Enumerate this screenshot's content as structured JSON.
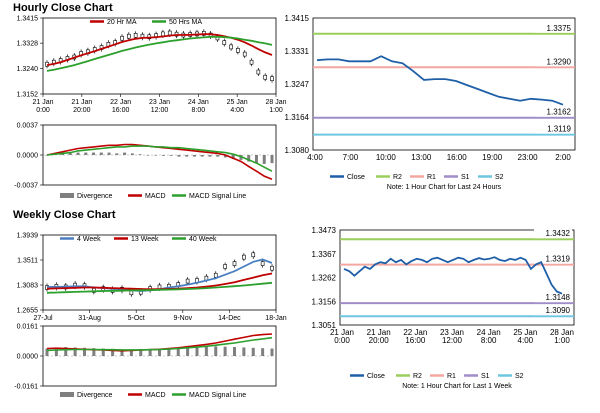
{
  "page": {
    "hourly_title": "Hourly Close Chart",
    "weekly_title": "Weekly Close Chart"
  },
  "colors": {
    "candle_up": "#ffffff",
    "candle_line": "#000000",
    "ma_short": "#c00000",
    "ma_long": "#2ca02c",
    "ma_4week": "#4a7fc1",
    "close": "#1f5fa8",
    "r2": "#9acd5a",
    "r1": "#f4a6a0",
    "s1": "#a08cc8",
    "s2": "#6ec6e0",
    "divergence": "#7f7f7f",
    "grid": "#dddddd",
    "macd_fill": "#e0e0e0"
  },
  "chart_data": [
    {
      "id": "hourly-price",
      "type": "line",
      "title": "Hourly Close Chart",
      "x_ticks": [
        "21 Jan 0:00",
        "21 Jan 20:00",
        "22 Jan 16:00",
        "23 Jan 12:00",
        "24 Jan 8:00",
        "25 Jan 4:00",
        "28 Jan 1:00"
      ],
      "y_ticks": [
        "1.3415",
        "1.3328",
        "1.3240",
        "1.3152"
      ],
      "ylim": [
        1.3152,
        1.3415
      ],
      "legend": [
        "20 Hr MA",
        "50 Hrs MA"
      ],
      "series": [
        {
          "name": "Close",
          "values": [
            1.3255,
            1.3262,
            1.3268,
            1.3275,
            1.328,
            1.3292,
            1.3298,
            1.3306,
            1.3313,
            1.3324,
            1.333,
            1.3345,
            1.3352,
            1.3355,
            1.3352,
            1.335,
            1.3354,
            1.336,
            1.3363,
            1.3359,
            1.3356,
            1.3358,
            1.336,
            1.3362,
            1.3356,
            1.3346,
            1.333,
            1.3315,
            1.3303,
            1.329,
            1.3262,
            1.3228,
            1.321,
            1.3205
          ]
        },
        {
          "name": "20 Hr MA",
          "values": [
            1.3252,
            1.3256,
            1.3262,
            1.327,
            1.3278,
            1.3286,
            1.3293,
            1.33,
            1.3308,
            1.3316,
            1.3324,
            1.3332,
            1.3338,
            1.3343,
            1.3346,
            1.3347,
            1.3349,
            1.3351,
            1.3354,
            1.3356,
            1.3356,
            1.3357,
            1.3358,
            1.3359,
            1.3359,
            1.3356,
            1.3352,
            1.3347,
            1.334,
            1.3331,
            1.332,
            1.3307,
            1.3296,
            1.3287
          ]
        },
        {
          "name": "50 Hrs MA",
          "values": [
            1.3232,
            1.3236,
            1.3241,
            1.3246,
            1.3252,
            1.3259,
            1.3266,
            1.3273,
            1.328,
            1.3287,
            1.3294,
            1.3301,
            1.3307,
            1.3313,
            1.3318,
            1.3323,
            1.3327,
            1.3331,
            1.3335,
            1.3338,
            1.3341,
            1.3344,
            1.3346,
            1.3348,
            1.335,
            1.335,
            1.3349,
            1.3347,
            1.3344,
            1.334,
            1.3336,
            1.3331,
            1.3327,
            1.3322
          ]
        }
      ]
    },
    {
      "id": "hourly-macd",
      "type": "line",
      "y_ticks": [
        "0.0037",
        "0.0000",
        "-0.0037"
      ],
      "ylim": [
        -0.0037,
        0.0037
      ],
      "legend": [
        "Divergence",
        "MACD",
        "MACD Signal Line"
      ],
      "series": [
        {
          "name": "MACD",
          "values": [
            0.0,
            0.0002,
            0.0004,
            0.0006,
            0.0008,
            0.0009,
            0.001,
            0.0011,
            0.0012,
            0.0012,
            0.0013,
            0.0013,
            0.0012,
            0.0011,
            0.001,
            0.0009,
            0.0008,
            0.0007,
            0.0006,
            0.0005,
            0.0004,
            0.0003,
            0.0002,
            0.0,
            -0.0004,
            -0.0008,
            -0.0014,
            -0.002,
            -0.0026,
            -0.003
          ]
        },
        {
          "name": "MACD Signal Line",
          "values": [
            0.0,
            0.0001,
            0.0002,
            0.0003,
            0.0005,
            0.0006,
            0.0007,
            0.0008,
            0.0009,
            0.001,
            0.001,
            0.0011,
            0.0011,
            0.0011,
            0.001,
            0.001,
            0.0009,
            0.0009,
            0.0008,
            0.0007,
            0.0006,
            0.0005,
            0.0004,
            0.0003,
            0.0001,
            -0.0002,
            -0.0006,
            -0.001,
            -0.0015,
            -0.002
          ]
        },
        {
          "name": "Divergence",
          "values": [
            0.0,
            0.0001,
            0.0002,
            0.0003,
            0.0003,
            0.0003,
            0.0003,
            0.0003,
            0.0003,
            0.0002,
            0.0003,
            0.0002,
            0.0001,
            0.0,
            0.0,
            -0.0001,
            -0.0001,
            -0.0002,
            -0.0002,
            -0.0002,
            -0.0002,
            -0.0002,
            -0.0002,
            -0.0003,
            -0.0005,
            -0.0006,
            -0.0008,
            -0.001,
            -0.0011,
            -0.001
          ]
        }
      ]
    },
    {
      "id": "hourly-close-pivots",
      "type": "line",
      "x_ticks": [
        "4:00",
        "7:00",
        "10:00",
        "13:00",
        "16:00",
        "19:00",
        "23:00",
        "2:00"
      ],
      "y_ticks": [
        "1.3415",
        "1.3331",
        "1.3247",
        "1.3164",
        "1.3080"
      ],
      "ylim": [
        1.308,
        1.3415
      ],
      "pivots": [
        {
          "name": "R2",
          "value": 1.3375,
          "label": "1.3375"
        },
        {
          "name": "R1",
          "value": 1.329,
          "label": "1.3290"
        },
        {
          "name": "S1",
          "value": 1.3162,
          "label": "1.3162"
        },
        {
          "name": "S2",
          "value": 1.3119,
          "label": "1.3119"
        }
      ],
      "close_x": [
        0,
        1,
        2,
        3,
        4,
        5,
        6,
        7,
        8,
        9,
        10,
        11,
        12,
        13,
        14,
        15,
        16,
        17,
        18,
        19,
        20,
        21,
        22,
        23
      ],
      "close_values": [
        1.3308,
        1.331,
        1.331,
        1.3305,
        1.3305,
        1.3305,
        1.3318,
        1.3305,
        1.33,
        1.328,
        1.3258,
        1.326,
        1.326,
        1.3255,
        1.3245,
        1.3235,
        1.3225,
        1.3215,
        1.321,
        1.3205,
        1.321,
        1.3208,
        1.3205,
        1.3195
      ],
      "legend": [
        "Close",
        "R2",
        "R1",
        "S1",
        "S2"
      ],
      "note": "Note: 1 Hour Chart for Last 24 Hours"
    },
    {
      "id": "weekly-price",
      "type": "line",
      "title": "Weekly Close Chart",
      "x_ticks": [
        "27-Jul",
        "31-Aug",
        "5-Oct",
        "9-Nov",
        "14-Dec",
        "18-Jan"
      ],
      "y_ticks": [
        "1.3939",
        "1.3511",
        "1.3083",
        "1.2655"
      ],
      "ylim": [
        1.2655,
        1.3939
      ],
      "legend": [
        "4 Week",
        "13 Week",
        "40 Week"
      ],
      "series": [
        {
          "name": "Close",
          "values": [
            1.304,
            1.306,
            1.305,
            1.308,
            1.307,
            1.299,
            1.302,
            1.299,
            1.301,
            1.295,
            1.296,
            1.302,
            1.305,
            1.306,
            1.309,
            1.315,
            1.316,
            1.32,
            1.325,
            1.34,
            1.345,
            1.356,
            1.36,
            1.345,
            1.337
          ]
        },
        {
          "name": "4 Week",
          "values": [
            1.305,
            1.305,
            1.3055,
            1.306,
            1.306,
            1.304,
            1.303,
            1.302,
            1.301,
            1.299,
            1.298,
            1.299,
            1.301,
            1.304,
            1.306,
            1.309,
            1.312,
            1.316,
            1.32,
            1.326,
            1.332,
            1.34,
            1.348,
            1.352,
            1.346
          ]
        },
        {
          "name": "13 Week",
          "values": [
            1.302,
            1.3025,
            1.303,
            1.3035,
            1.304,
            1.304,
            1.3035,
            1.303,
            1.3025,
            1.302,
            1.3015,
            1.301,
            1.3012,
            1.3015,
            1.302,
            1.303,
            1.304,
            1.3055,
            1.3075,
            1.31,
            1.313,
            1.317,
            1.321,
            1.325,
            1.328
          ]
        },
        {
          "name": "40 Week",
          "values": [
            1.295,
            1.2955,
            1.296,
            1.2965,
            1.297,
            1.2975,
            1.298,
            1.2983,
            1.2986,
            1.299,
            1.2993,
            1.2996,
            1.3,
            1.3005,
            1.301,
            1.3015,
            1.3022,
            1.303,
            1.304,
            1.305,
            1.3062,
            1.3075,
            1.309,
            1.3105,
            1.312
          ]
        }
      ]
    },
    {
      "id": "weekly-macd",
      "type": "line",
      "y_ticks": [
        "0.0161",
        "0.0000",
        "-0.0161"
      ],
      "ylim": [
        -0.0161,
        0.0161
      ],
      "legend": [
        "Divergence",
        "MACD",
        "MACD Signal Line"
      ],
      "series": [
        {
          "name": "MACD",
          "values": [
            0.004,
            0.0042,
            0.004,
            0.0038,
            0.0036,
            0.0034,
            0.0032,
            0.003,
            0.0028,
            0.003,
            0.0032,
            0.0034,
            0.0036,
            0.004,
            0.0044,
            0.005,
            0.0056,
            0.0062,
            0.007,
            0.008,
            0.009,
            0.01,
            0.011,
            0.0115,
            0.0118
          ]
        },
        {
          "name": "MACD Signal Line",
          "values": [
            0.003,
            0.0032,
            0.0034,
            0.0035,
            0.0035,
            0.0035,
            0.0034,
            0.0034,
            0.0033,
            0.0033,
            0.0033,
            0.0034,
            0.0035,
            0.0037,
            0.004,
            0.0044,
            0.0048,
            0.0052,
            0.0058,
            0.0064,
            0.007,
            0.0078,
            0.0086,
            0.0092,
            0.0098
          ]
        },
        {
          "name": "Divergence",
          "values": [
            0.004,
            0.0045,
            0.0048,
            0.0046,
            0.0044,
            0.0042,
            0.004,
            0.0038,
            0.0036,
            0.0035,
            0.0036,
            0.0038,
            0.004,
            0.0042,
            0.0044,
            0.0046,
            0.0048,
            0.005,
            0.0052,
            0.005,
            0.0048,
            0.0046,
            0.0044,
            0.0042,
            0.004
          ]
        }
      ]
    },
    {
      "id": "weekly-close-pivots",
      "type": "line",
      "x_ticks": [
        "21 Jan 0:00",
        "21 Jan 20:00",
        "22 Jan 16:00",
        "23 Jan 12:00",
        "24 Jan 8:00",
        "25 Jan 4:00",
        "28 Jan 1:00"
      ],
      "y_ticks": [
        "1.3473",
        "1.3367",
        "1.3262",
        "1.3156",
        "1.3051"
      ],
      "ylim": [
        1.3051,
        1.3473
      ],
      "pivots": [
        {
          "name": "R2",
          "value": 1.3432,
          "label": "1.3432"
        },
        {
          "name": "R1",
          "value": 1.3319,
          "label": "1.3319"
        },
        {
          "name": "S1",
          "value": 1.3148,
          "label": "1.3148"
        },
        {
          "name": "S2",
          "value": 1.309,
          "label": "1.3090"
        }
      ],
      "close_values": [
        1.33,
        1.329,
        1.327,
        1.329,
        1.331,
        1.33,
        1.332,
        1.333,
        1.3325,
        1.3345,
        1.333,
        1.334,
        1.332,
        1.3335,
        1.3345,
        1.334,
        1.333,
        1.3345,
        1.335,
        1.334,
        1.333,
        1.334,
        1.335,
        1.3345,
        1.333,
        1.334,
        1.3348,
        1.3342,
        1.3345,
        1.3352,
        1.334,
        1.3335,
        1.3345,
        1.334,
        1.335,
        1.334,
        1.33,
        1.332,
        1.333,
        1.328,
        1.323,
        1.32,
        1.319
      ],
      "legend": [
        "Close",
        "R2",
        "R1",
        "S1",
        "S2"
      ],
      "note": "Note: 1 Hour Chart for Last 1 Week"
    }
  ]
}
